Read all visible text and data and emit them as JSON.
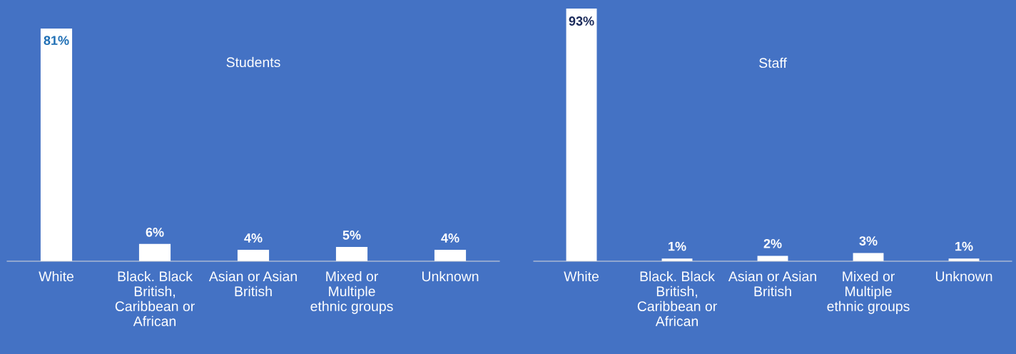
{
  "chart_data": [
    {
      "type": "bar",
      "title": "Students",
      "categories": [
        "White",
        "Black. Black British, Caribbean or African",
        "Asian or Asian British",
        "Mixed or Multiple ethnic groups",
        "Unknown"
      ],
      "values": [
        81,
        6,
        4,
        5,
        4
      ],
      "value_labels": [
        "81%",
        "6%",
        "4%",
        "5%",
        "4%"
      ],
      "color": "#ffffff"
    },
    {
      "type": "bar",
      "title": "Staff",
      "categories": [
        "White",
        "Black. Black British, Caribbean or African",
        "Asian or Asian British",
        "Mixed or Multiple ethnic groups",
        "Unknown"
      ],
      "values": [
        93,
        1,
        2,
        3,
        1
      ],
      "value_labels": [
        "93%",
        "1%",
        "2%",
        "3%",
        "1%"
      ],
      "color": "#ffffff"
    }
  ]
}
